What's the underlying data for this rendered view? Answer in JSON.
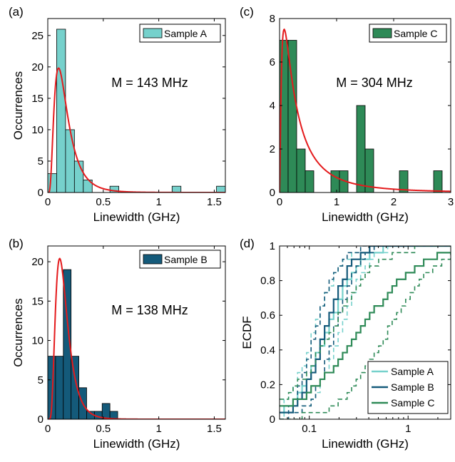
{
  "chart_data": [
    {
      "id": "a",
      "panel_label": "(a)",
      "type": "bar",
      "bar_color": "#76d1cc",
      "xlabel": "Linewidth (GHz)",
      "ylabel": "Occurrences",
      "xlim": [
        0,
        1.6
      ],
      "ylim": [
        0,
        27.7
      ],
      "xticks": [
        0,
        0.5,
        1,
        1.5
      ],
      "xtick_labels": [
        "0",
        "0.5",
        "1",
        "1.5"
      ],
      "yticks": [
        0,
        5,
        10,
        15,
        20,
        25
      ],
      "ytick_labels": [
        "0",
        "5",
        "10",
        "15",
        "20",
        "25"
      ],
      "bin_width": 0.08,
      "bin_starts": [
        0,
        0.08,
        0.16,
        0.24,
        0.32,
        0.4,
        0.48,
        0.56,
        0.64,
        0.72,
        0.8,
        0.88,
        0.96,
        1.04,
        1.12,
        1.2,
        1.28,
        1.36,
        1.44,
        1.52
      ],
      "counts": [
        3,
        26,
        10,
        5,
        2,
        0,
        0,
        1,
        0,
        0,
        0,
        0,
        0,
        0,
        1,
        0,
        0,
        0,
        0,
        1
      ],
      "fit": {
        "name": "lognormal",
        "median": 0.143,
        "sigma": 0.62,
        "scale": 1.6
      },
      "annotation": "M = 143 MHz",
      "legend": "Sample A"
    },
    {
      "id": "c",
      "panel_label": "(c)",
      "type": "bar",
      "bar_color": "#2e8a57",
      "xlabel": "Linewidth (GHz)",
      "ylabel": "",
      "xlim": [
        0,
        3
      ],
      "ylim": [
        0,
        8
      ],
      "xticks": [
        0,
        1,
        2,
        3
      ],
      "xtick_labels": [
        "0",
        "1",
        "2",
        "3"
      ],
      "yticks": [
        0,
        2,
        4,
        6,
        8
      ],
      "ytick_labels": [
        "0",
        "2",
        "4",
        "6",
        "8"
      ],
      "bin_width": 0.15,
      "bin_starts": [
        0,
        0.15,
        0.3,
        0.45,
        0.6,
        0.75,
        0.9,
        1.05,
        1.2,
        1.35,
        1.5,
        1.65,
        1.8,
        1.95,
        2.1,
        2.25,
        2.4,
        2.55,
        2.7,
        2.85
      ],
      "counts": [
        7,
        7,
        2,
        1,
        0,
        0,
        1,
        1,
        0,
        4,
        2,
        0,
        0,
        0,
        1,
        0,
        0,
        0,
        1,
        0
      ],
      "fit": {
        "name": "lognormal",
        "median": 0.304,
        "sigma": 1.15,
        "scale": 4.5
      },
      "annotation": "M = 304 MHz",
      "legend": "Sample C"
    },
    {
      "id": "b",
      "panel_label": "(b)",
      "type": "bar",
      "bar_color": "#145a7a",
      "xlabel": "Linewidth (GHz)",
      "ylabel": "Occurrences",
      "xlim": [
        0,
        1.6
      ],
      "ylim": [
        0,
        22
      ],
      "xticks": [
        0,
        0.5,
        1,
        1.5
      ],
      "xtick_labels": [
        "0",
        "0.5",
        "1",
        "1.5"
      ],
      "yticks": [
        0,
        5,
        10,
        15,
        20
      ],
      "ytick_labels": [
        "0",
        "5",
        "10",
        "15",
        "20"
      ],
      "bin_width": 0.07,
      "bin_starts": [
        0,
        0.07,
        0.14,
        0.21,
        0.28,
        0.35,
        0.42,
        0.49,
        0.56
      ],
      "counts": [
        8,
        8,
        19,
        8,
        4,
        1,
        1,
        2,
        1
      ],
      "fit": {
        "name": "lognormal",
        "median": 0.138,
        "sigma": 0.5,
        "scale": 1.45
      },
      "annotation": "M = 138 MHz",
      "legend": "Sample B"
    },
    {
      "id": "d",
      "panel_label": "(d)",
      "type": "line",
      "xlabel": "Linewidth (GHz)",
      "ylabel": "ECDF",
      "x_scale": "log",
      "xlim": [
        0.05,
        2.7
      ],
      "ylim": [
        0,
        1
      ],
      "xticks": [
        0.1,
        1
      ],
      "xtick_labels": [
        "0.1",
        "1"
      ],
      "yticks": [
        0,
        0.2,
        0.4,
        0.6,
        0.8,
        1
      ],
      "ytick_labels": [
        "0",
        "0.2",
        "0.4",
        "0.6",
        "0.8",
        "1"
      ],
      "legend_position": "bottom-right",
      "series": [
        {
          "name": "Sample A",
          "color": "#76d1cc",
          "median": 0.143,
          "sigma": 0.62,
          "band": 0.22
        },
        {
          "name": "Sample B",
          "color": "#145a7a",
          "median": 0.138,
          "sigma": 0.5,
          "band": 0.2
        },
        {
          "name": "Sample C",
          "color": "#2e8a57",
          "median": 0.304,
          "sigma": 1.15,
          "band": 0.28
        }
      ]
    }
  ]
}
